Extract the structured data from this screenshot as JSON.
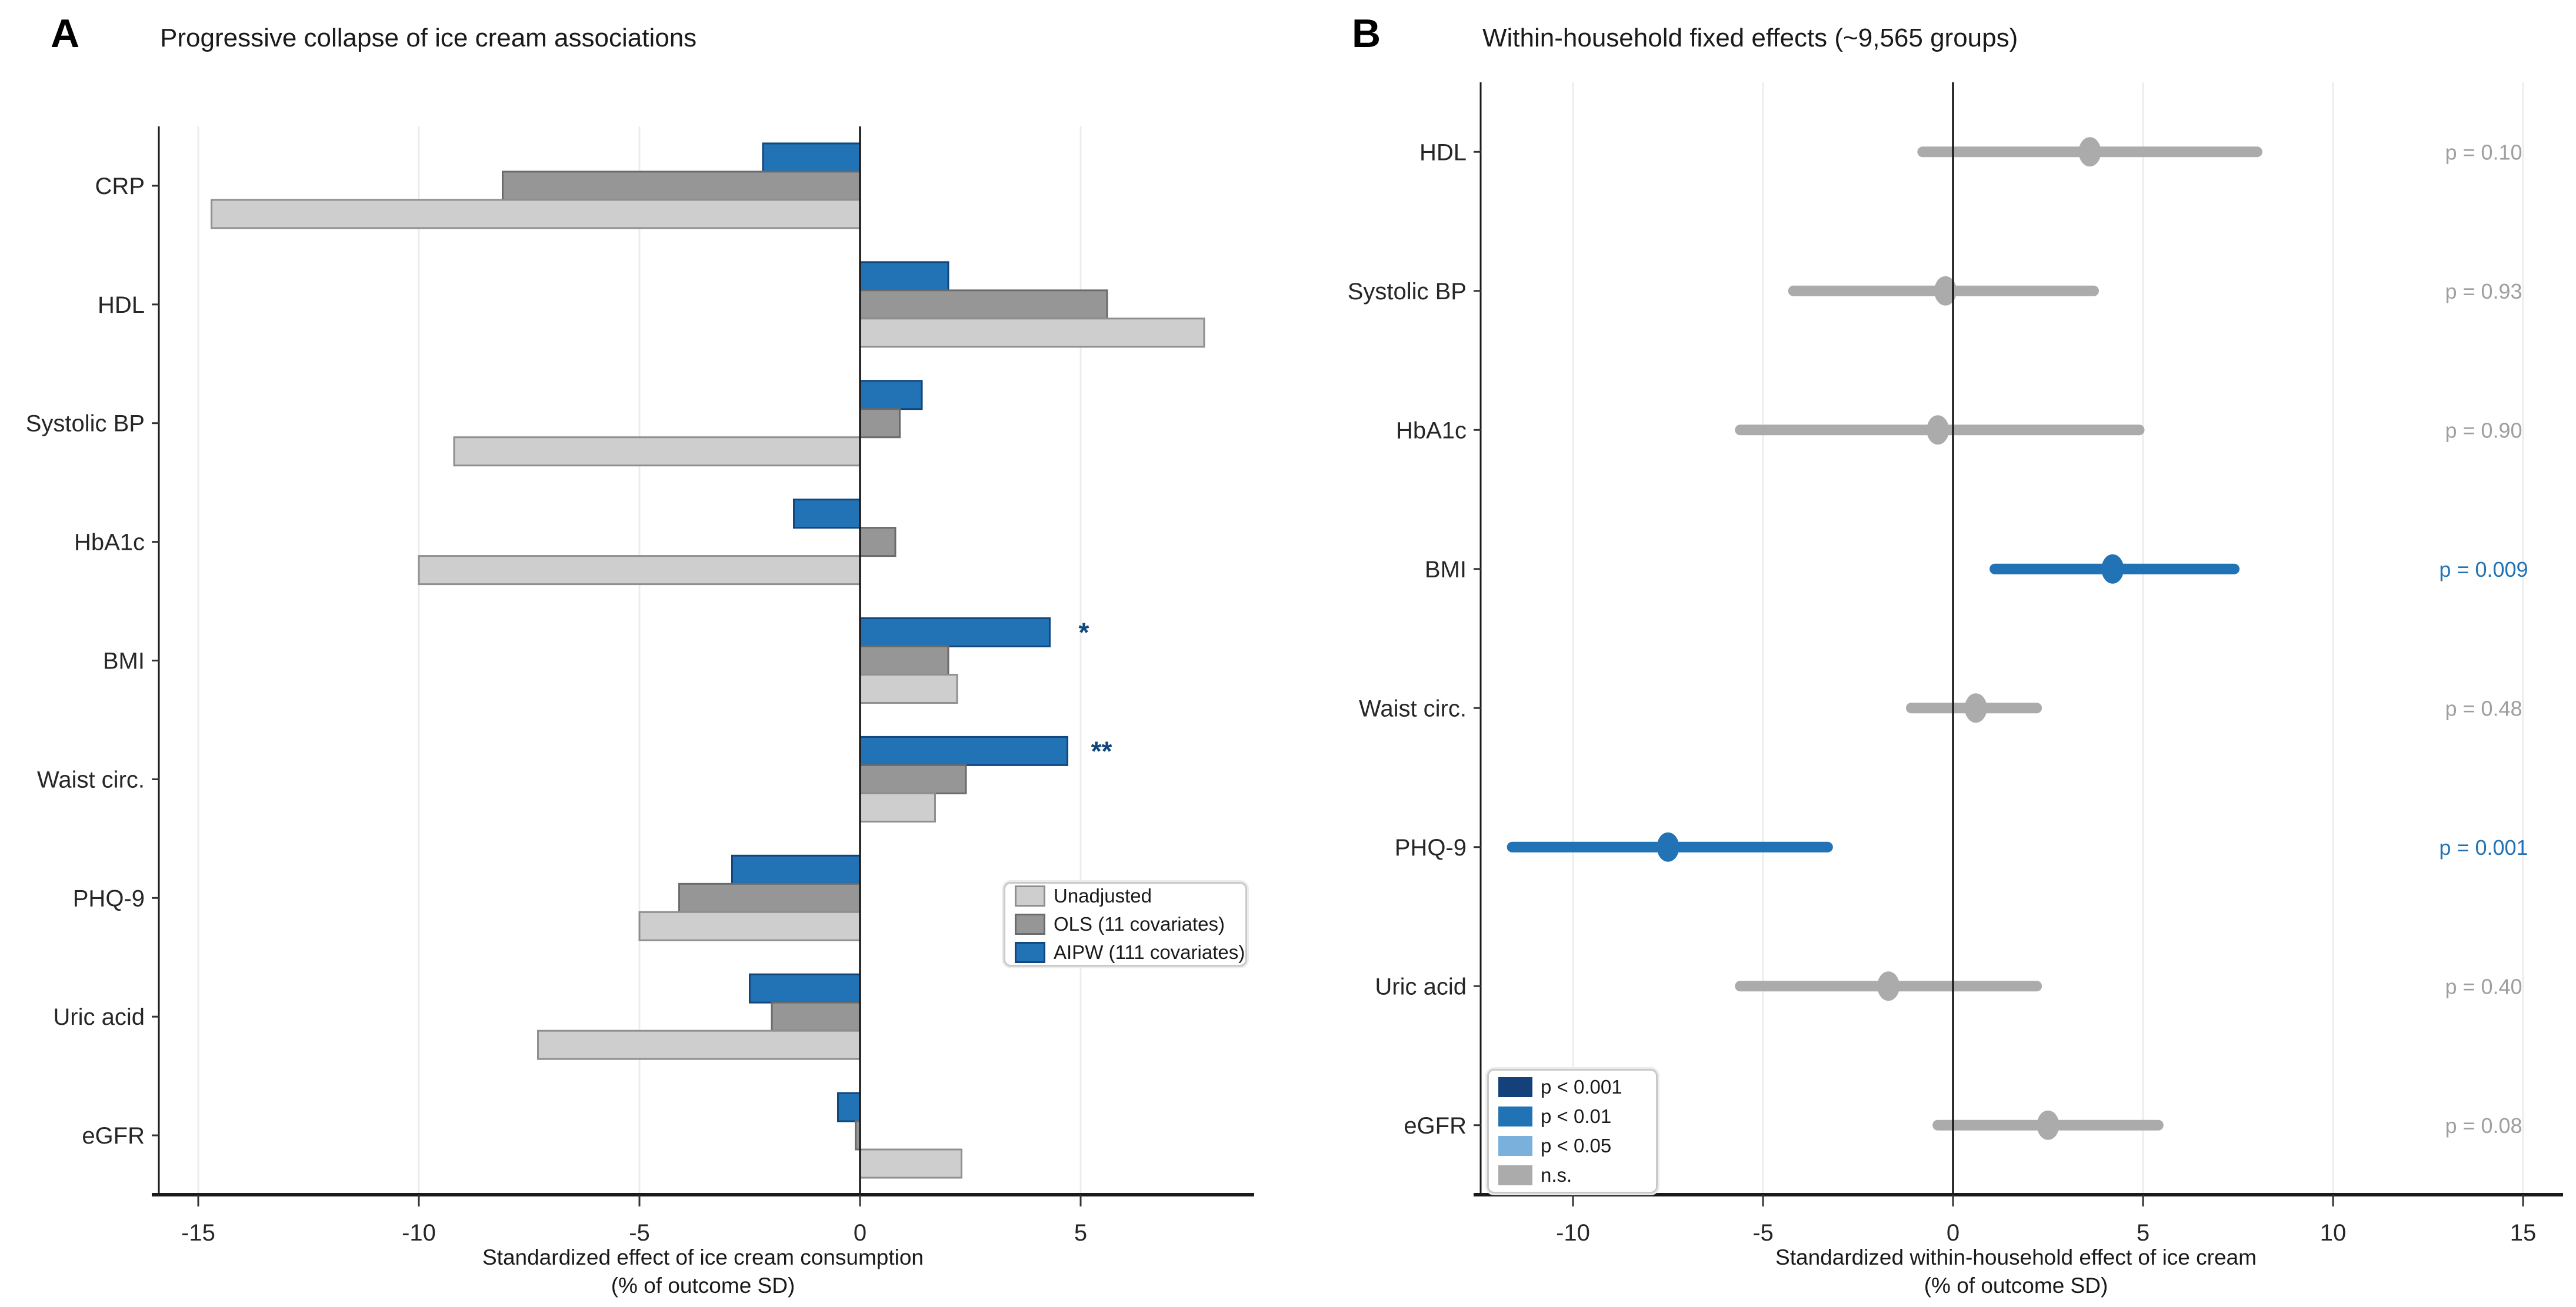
{
  "chart_data": [
    {
      "id": "A",
      "type": "bar",
      "orientation": "horizontal",
      "panel_label": "A",
      "title": "Progressive collapse of ice cream associations",
      "categories": [
        "CRP",
        "HDL",
        "Systolic BP",
        "HbA1c",
        "BMI",
        "Waist circ.",
        "PHQ-9",
        "Uric acid",
        "eGFR"
      ],
      "series": [
        {
          "name": "Unadjusted",
          "color": "#cecece",
          "border": "#8f8f8f",
          "values": [
            -14.7,
            7.8,
            -9.2,
            -10.0,
            2.2,
            1.7,
            -5.0,
            -7.3,
            2.3
          ]
        },
        {
          "name": "OLS (11 covariates)",
          "color": "#969696",
          "border": "#6b6b6b",
          "values": [
            -8.1,
            5.6,
            0.9,
            0.8,
            2.0,
            2.4,
            -4.1,
            -2.0,
            -0.1
          ]
        },
        {
          "name": "AIPW (111 covariates)",
          "color": "#2273b5",
          "border": "#11477e",
          "values": [
            -2.2,
            2.0,
            1.4,
            -1.5,
            4.3,
            4.7,
            -2.9,
            -2.5,
            -0.5
          ]
        }
      ],
      "bar_order_top_to_bottom": [
        "AIPW (111 covariates)",
        "OLS (11 covariates)",
        "Unadjusted"
      ],
      "annotations": [
        {
          "category": "BMI",
          "series": "AIPW (111 covariates)",
          "text": "*",
          "color": "#11477e"
        },
        {
          "category": "Waist circ.",
          "series": "AIPW (111 covariates)",
          "text": "**",
          "color": "#11477e"
        }
      ],
      "x_ticks": [
        -15,
        -10,
        -5,
        0,
        5
      ],
      "xlim": [
        -15.9,
        8.8
      ],
      "xlabel": [
        "Standardized effect of ice cream consumption",
        "(% of outcome SD)"
      ],
      "grid": "vertical",
      "legend_position": "inside-right-middle"
    },
    {
      "id": "B",
      "type": "scatter",
      "subtype": "forest-plot",
      "panel_label": "B",
      "title": "Within-household fixed effects (~9,565 groups)",
      "categories": [
        "HDL",
        "Systolic BP",
        "HbA1c",
        "BMI",
        "Waist circ.",
        "PHQ-9",
        "Uric acid",
        "eGFR"
      ],
      "points": [
        {
          "category": "HDL",
          "estimate": 3.6,
          "ci_low": -0.8,
          "ci_high": 8.0,
          "p_label": "p = 0.10",
          "significant": false
        },
        {
          "category": "Systolic BP",
          "estimate": -0.2,
          "ci_low": -4.2,
          "ci_high": 3.7,
          "p_label": "p = 0.93",
          "significant": false
        },
        {
          "category": "HbA1c",
          "estimate": -0.4,
          "ci_low": -5.6,
          "ci_high": 4.9,
          "p_label": "p = 0.90",
          "significant": false
        },
        {
          "category": "BMI",
          "estimate": 4.2,
          "ci_low": 1.1,
          "ci_high": 7.4,
          "p_label": "p = 0.009",
          "significant": true
        },
        {
          "category": "Waist circ.",
          "estimate": 0.6,
          "ci_low": -1.1,
          "ci_high": 2.2,
          "p_label": "p = 0.48",
          "significant": false
        },
        {
          "category": "PHQ-9",
          "estimate": -7.5,
          "ci_low": -11.6,
          "ci_high": -3.3,
          "p_label": "p = 0.001",
          "significant": true
        },
        {
          "category": "Uric acid",
          "estimate": -1.7,
          "ci_low": -5.6,
          "ci_high": 2.2,
          "p_label": "p = 0.40",
          "significant": false
        },
        {
          "category": "eGFR",
          "estimate": 2.5,
          "ci_low": -0.4,
          "ci_high": 5.4,
          "p_label": "p = 0.08",
          "significant": false
        }
      ],
      "colors": {
        "significant": "#2273b5",
        "ns": "#ababab",
        "p_text_significant": "#2273b5",
        "p_text_ns": "#9e9e9e"
      },
      "legend": [
        {
          "label": "p < 0.001",
          "color": "#14407c"
        },
        {
          "label": "p < 0.01",
          "color": "#2273b5"
        },
        {
          "label": "p < 0.05",
          "color": "#79b1dc"
        },
        {
          "label": "n.s.",
          "color": "#ababab"
        }
      ],
      "x_ticks": [
        -10,
        -5,
        0,
        5,
        10,
        15
      ],
      "xlim": [
        -12.5,
        15.8
      ],
      "xlabel": [
        "Standardized within-household effect of ice cream",
        "(% of outcome SD)"
      ],
      "grid": "vertical",
      "legend_position": "inside-bottom-left"
    }
  ]
}
